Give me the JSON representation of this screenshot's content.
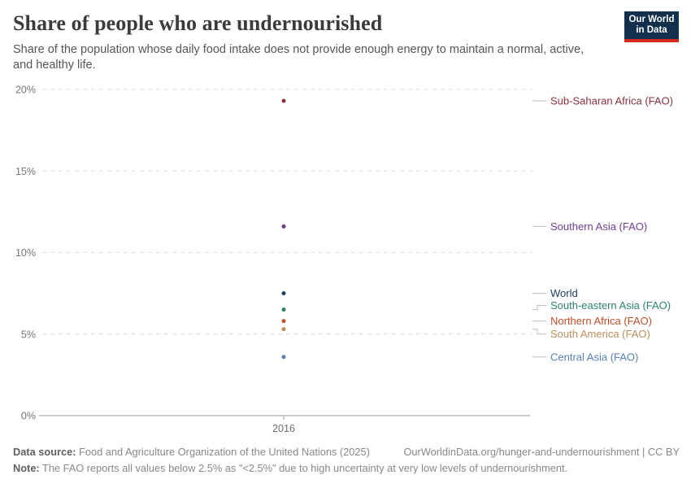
{
  "header": {
    "title": "Share of people who are undernourished",
    "subtitle": "Share of the population whose daily food intake does not provide enough energy to maintain a normal, active, and healthy life.",
    "logo": {
      "line1": "Our World",
      "line2": "in Data",
      "bg_color": "#12304c",
      "accent_color": "#d32b1e"
    }
  },
  "chart_data": {
    "type": "scatter",
    "x": [
      2016
    ],
    "xtick_labels": [
      "2016"
    ],
    "series": [
      {
        "name": "Sub-Saharan Africa (FAO)",
        "color": "#883039",
        "values": [
          19.3
        ],
        "label_offset": 0
      },
      {
        "name": "Southern Asia (FAO)",
        "color": "#6d3e91",
        "values": [
          11.6
        ],
        "label_offset": 0
      },
      {
        "name": "World",
        "color": "#1d3d63",
        "values": [
          7.5
        ],
        "label_offset": 0
      },
      {
        "name": "South-eastern Asia (FAO)",
        "color": "#2c8465",
        "values": [
          6.5
        ],
        "label_offset": -5
      },
      {
        "name": "Northern Africa (FAO)",
        "color": "#bc4e29",
        "values": [
          5.8
        ],
        "label_offset": 0
      },
      {
        "name": "South America (FAO)",
        "color": "#bc8e5a",
        "values": [
          5.3
        ],
        "label_offset": 6
      },
      {
        "name": "Central Asia (FAO)",
        "color": "#577eb5",
        "values": [
          3.6
        ],
        "label_offset": 0
      }
    ],
    "yticks": [
      0,
      5,
      10,
      15,
      20
    ],
    "ytick_labels": [
      "0%",
      "5%",
      "10%",
      "15%",
      "20%"
    ],
    "ylim": [
      0,
      20
    ],
    "ylabel": "",
    "xlabel": "",
    "grid": "dashed-horizontal",
    "legend_position": "right-labels",
    "tick_color": "#757575",
    "grid_color": "#dcdcdc",
    "axis_color": "#999999",
    "connector_color": "#bbbbbb"
  },
  "footer": {
    "datasource_label": "Data source:",
    "datasource_text": " Food and Agriculture Organization of the United Nations (2025)",
    "attribution": "OurWorldinData.org/hunger-and-undernourishment | CC BY",
    "note_label": "Note:",
    "note_text": " The FAO reports all values below 2.5% as \"<2.5%\" due to high uncertainty at very low levels of undernourishment."
  }
}
